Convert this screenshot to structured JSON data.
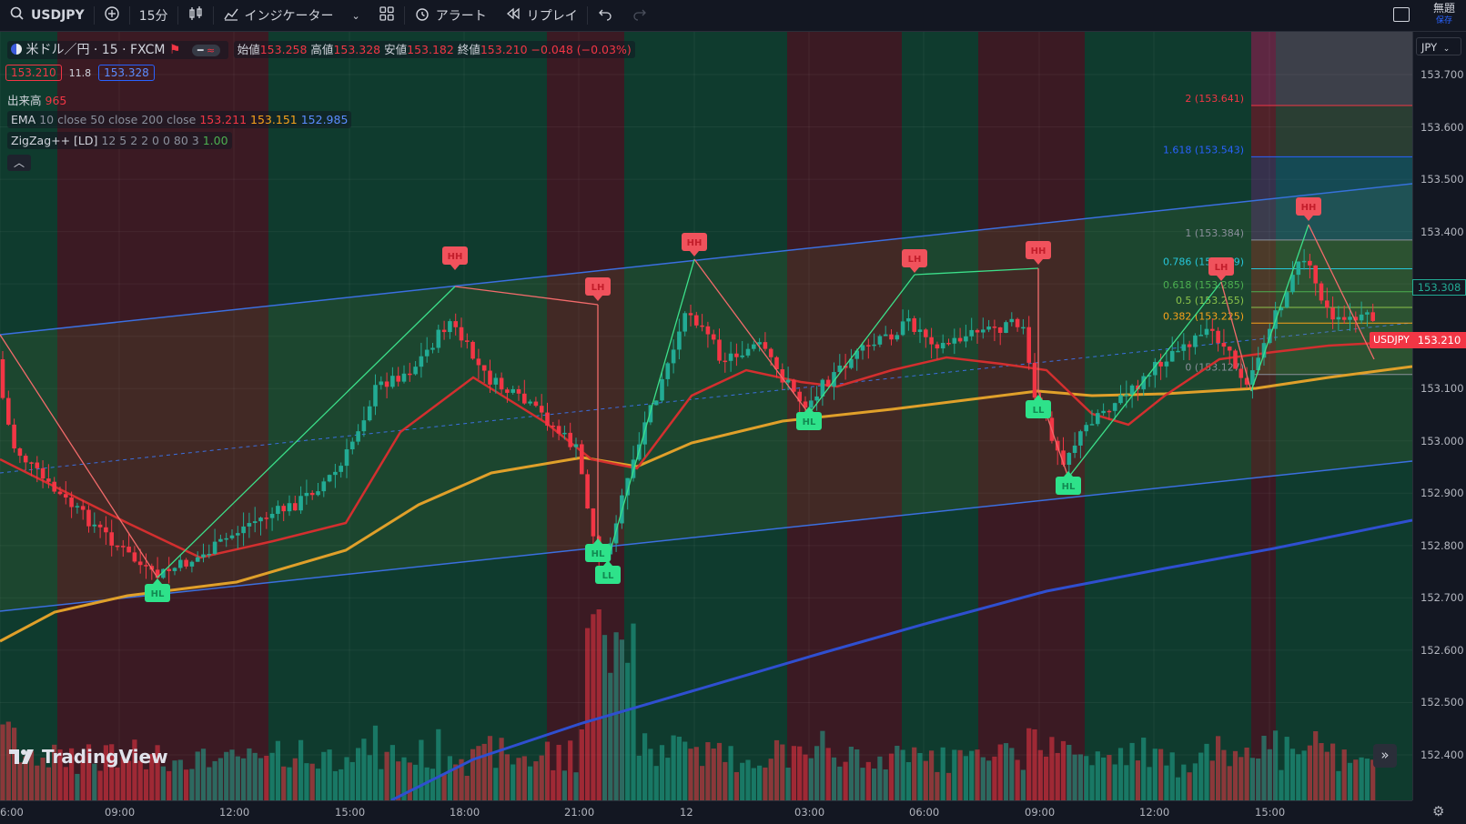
{
  "toolbar": {
    "symbol": "USDJPY",
    "interval": "15分",
    "indicators_label": "インジケーター",
    "alert_label": "アラート",
    "replay_label": "リプレイ",
    "save_title": "無題",
    "save_sub": "保存"
  },
  "legend": {
    "title": "米ドル／円 · 15 · FXCM",
    "open_label": "始値",
    "open": "153.258",
    "high_label": "高値",
    "high": "153.328",
    "low_label": "安値",
    "low": "153.182",
    "close_label": "終値",
    "close": "153.210",
    "change": "−0.048 (−0.03%)",
    "bid": "153.210",
    "spread": "11.8",
    "ask": "153.328",
    "volume_label": "出来高",
    "volume": "965",
    "ema_label": "EMA",
    "ema_params": "10 close 50 close 200 close",
    "ema10": "153.211",
    "ema50": "153.151",
    "ema200": "152.985",
    "zz_label": "ZigZag++ [LD]",
    "zz_params": "12 5 2 2 0 0 80 3",
    "zz_value": "1.00"
  },
  "price_axis": {
    "currency": "JPY",
    "ticks": [
      "153.700",
      "153.600",
      "153.500",
      "153.400",
      "153.300",
      "153.200",
      "153.100",
      "153.000",
      "152.900",
      "152.800",
      "152.700",
      "152.600",
      "152.500",
      "152.400"
    ],
    "high_tag": "153.308",
    "current_tag": "153.210",
    "symbol_tag": "USDJPY"
  },
  "time_axis": {
    "ticks": [
      "6:00",
      "09:00",
      "12:00",
      "15:00",
      "18:00",
      "21:00",
      "12",
      "03:00",
      "06:00",
      "09:00",
      "12:00",
      "15:00"
    ]
  },
  "fib": [
    {
      "label": "2 (153.641)",
      "color": "#f23645"
    },
    {
      "label": "1.618 (153.543)",
      "color": "#2962ff"
    },
    {
      "label": "1 (153.384)",
      "color": "#8a8f9b"
    },
    {
      "label": "0.786 (153.329)",
      "color": "#26c6da"
    },
    {
      "label": "0.618 (153.285)",
      "color": "#4caf50"
    },
    {
      "label": "0.5 (153.255)",
      "color": "#8bc34a"
    },
    {
      "label": "0.382 (153.225)",
      "color": "#f7a21b"
    },
    {
      "label": "0 (153.127)",
      "color": "#8a8f9b"
    }
  ],
  "pivots": [
    "HL",
    "HH",
    "LH",
    "HL",
    "LL",
    "HH",
    "HL",
    "LH",
    "HH",
    "LL",
    "HL",
    "LH",
    "HH"
  ],
  "brand": "TradingView",
  "colors": {
    "bull": "#22ab94",
    "bear": "#f23645",
    "ema10": "#d32f2f",
    "ema50": "#e0a02a",
    "ema200": "#2f4fd0",
    "zz_up": "#3ce08a",
    "zz_down": "#f26b6b"
  }
}
